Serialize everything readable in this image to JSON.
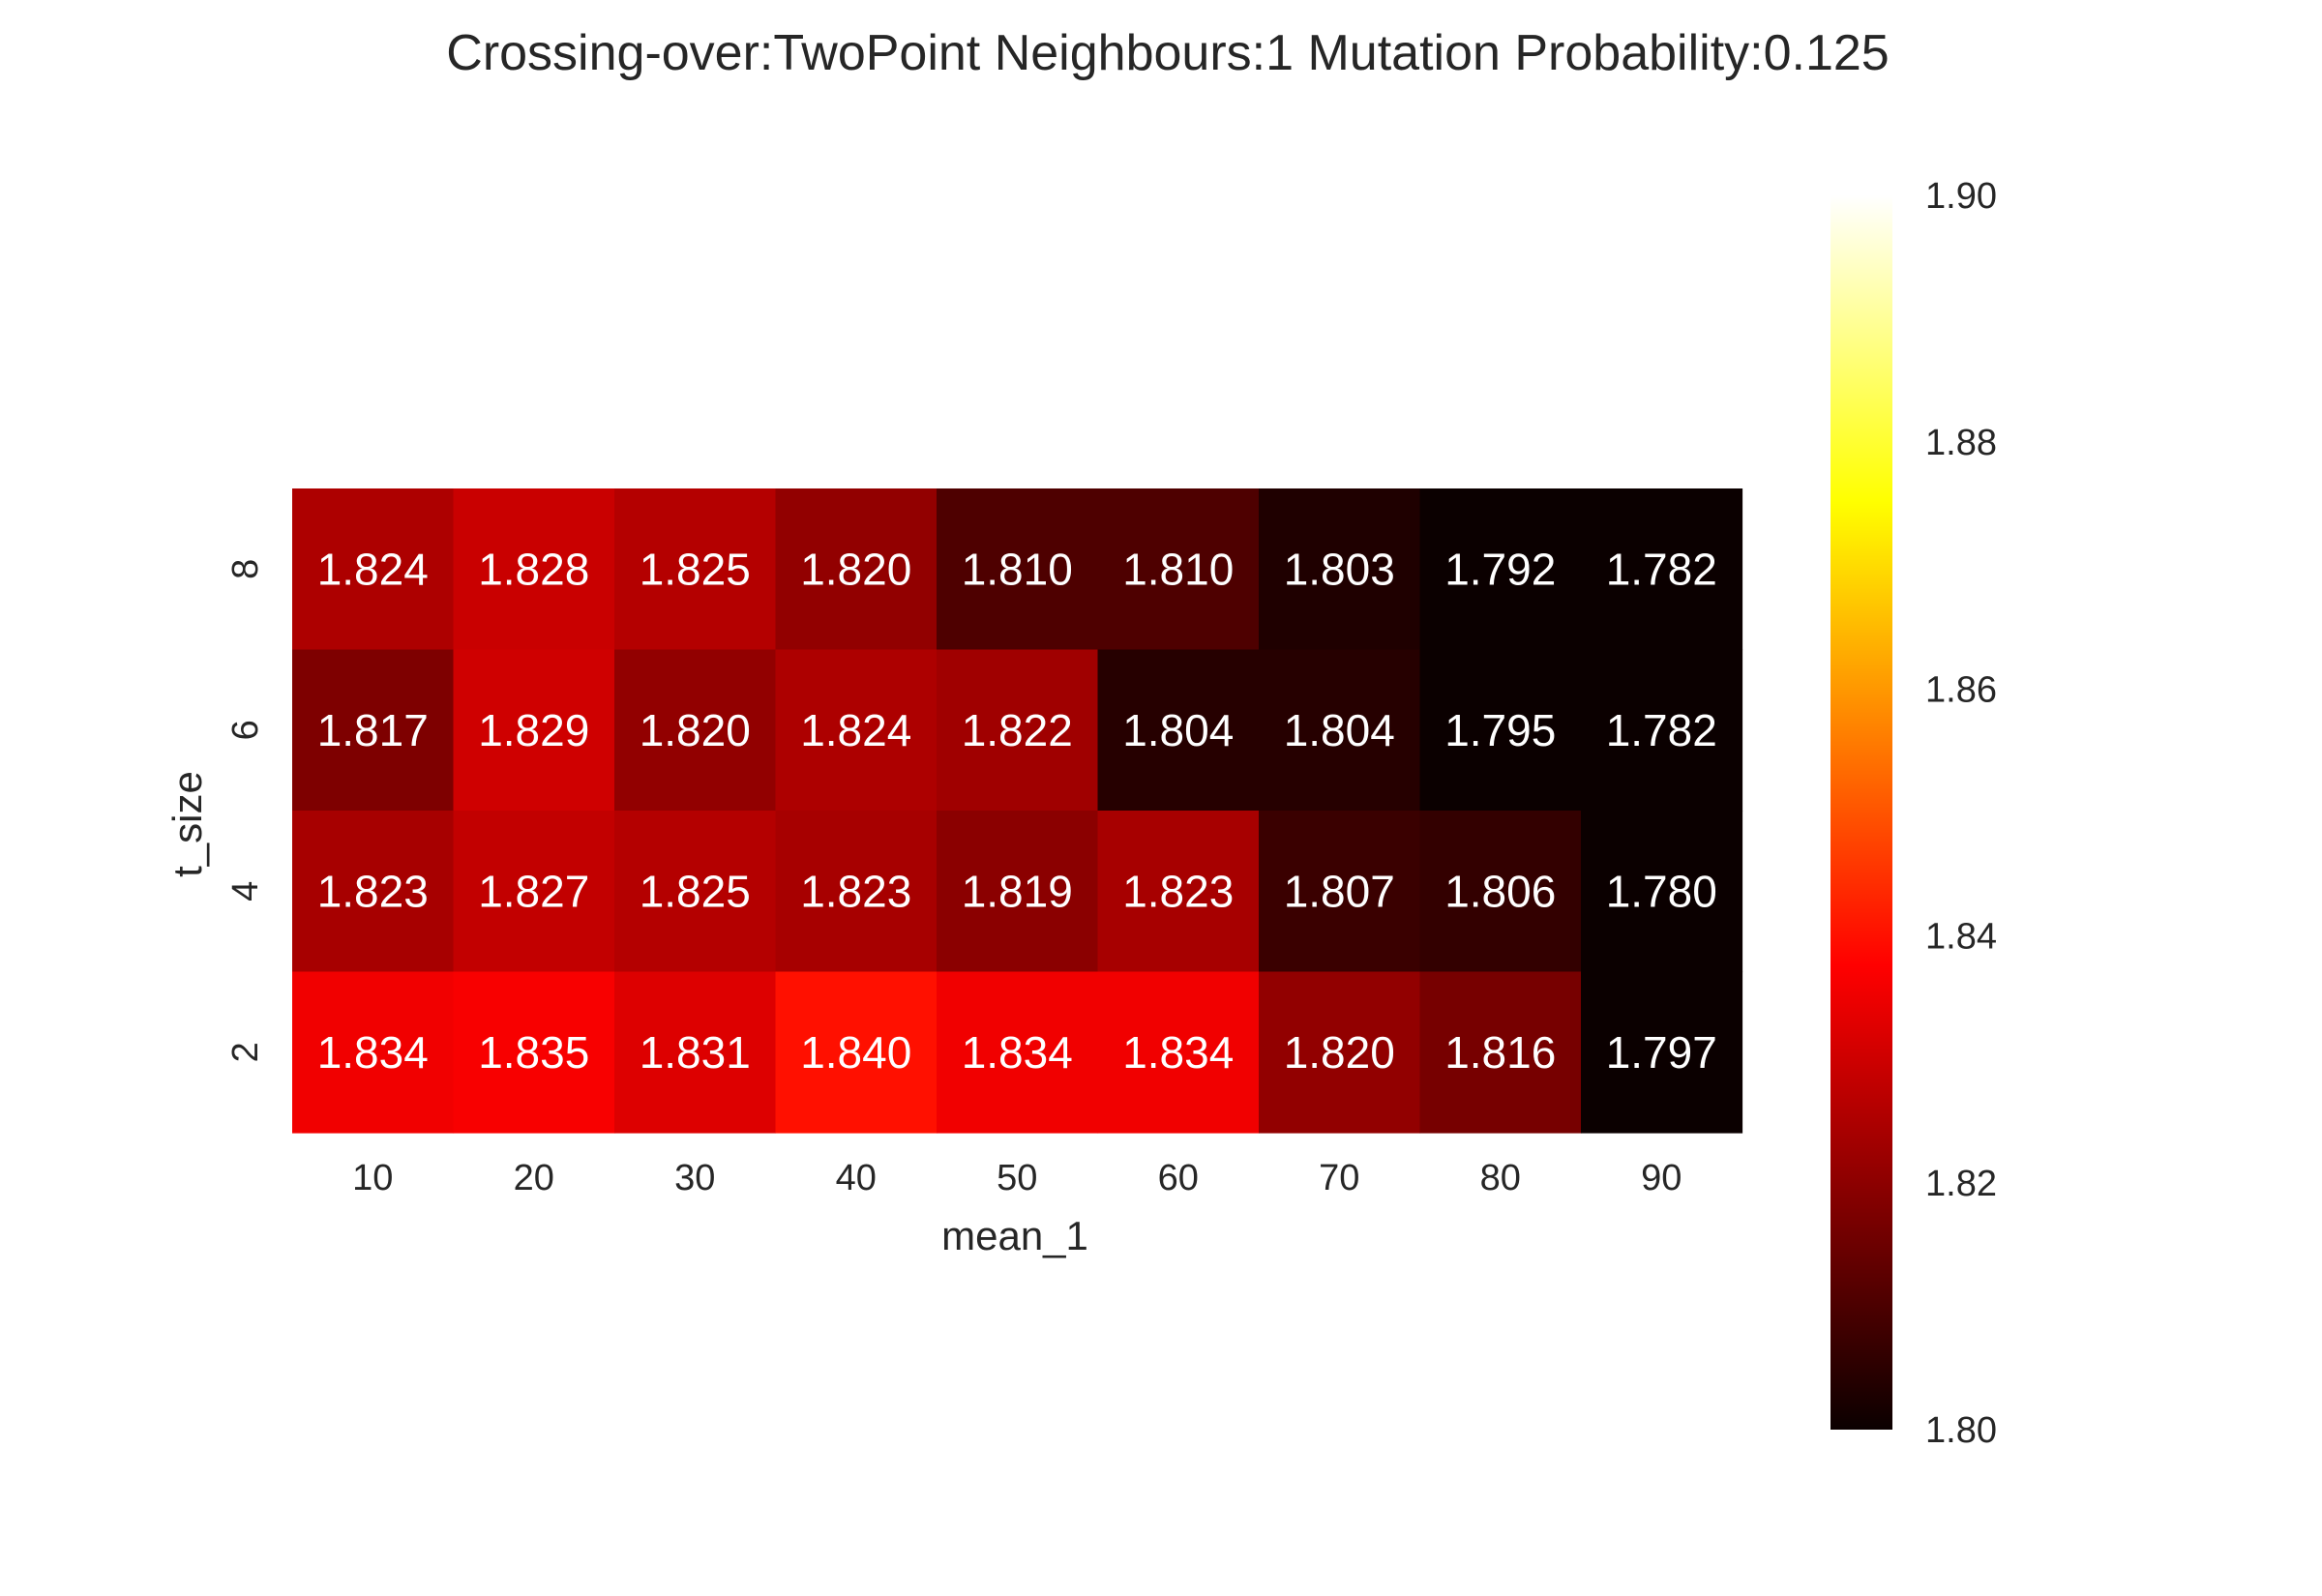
{
  "chart_data": {
    "type": "heatmap",
    "title": "Crossing-over:TwoPoint Neighbours:1 Mutation Probability:0.125",
    "xlabel": "mean_1",
    "ylabel": "t_size",
    "x_categories": [
      "10",
      "20",
      "30",
      "40",
      "50",
      "60",
      "70",
      "80",
      "90"
    ],
    "y_categories": [
      "8",
      "6",
      "4",
      "2"
    ],
    "values": [
      [
        1.824,
        1.828,
        1.825,
        1.82,
        1.81,
        1.81,
        1.803,
        1.792,
        1.782
      ],
      [
        1.817,
        1.829,
        1.82,
        1.824,
        1.822,
        1.804,
        1.804,
        1.795,
        1.782
      ],
      [
        1.823,
        1.827,
        1.825,
        1.823,
        1.819,
        1.823,
        1.807,
        1.806,
        1.78
      ],
      [
        1.834,
        1.835,
        1.831,
        1.84,
        1.834,
        1.834,
        1.82,
        1.816,
        1.797
      ]
    ],
    "value_labels": [
      [
        "1.824",
        "1.828",
        "1.825",
        "1.820",
        "1.810",
        "1.810",
        "1.803",
        "1.792",
        "1.782"
      ],
      [
        "1.817",
        "1.829",
        "1.820",
        "1.824",
        "1.822",
        "1.804",
        "1.804",
        "1.795",
        "1.782"
      ],
      [
        "1.823",
        "1.827",
        "1.825",
        "1.823",
        "1.819",
        "1.823",
        "1.807",
        "1.806",
        "1.780"
      ],
      [
        "1.834",
        "1.835",
        "1.831",
        "1.840",
        "1.834",
        "1.834",
        "1.820",
        "1.816",
        "1.797"
      ]
    ],
    "colormap": "hot",
    "color_range": [
      1.8,
      1.9
    ],
    "colorbar_ticks": [
      "1.80",
      "1.82",
      "1.84",
      "1.86",
      "1.88",
      "1.90"
    ],
    "grid": false,
    "annotation_color": "#ffffff"
  }
}
